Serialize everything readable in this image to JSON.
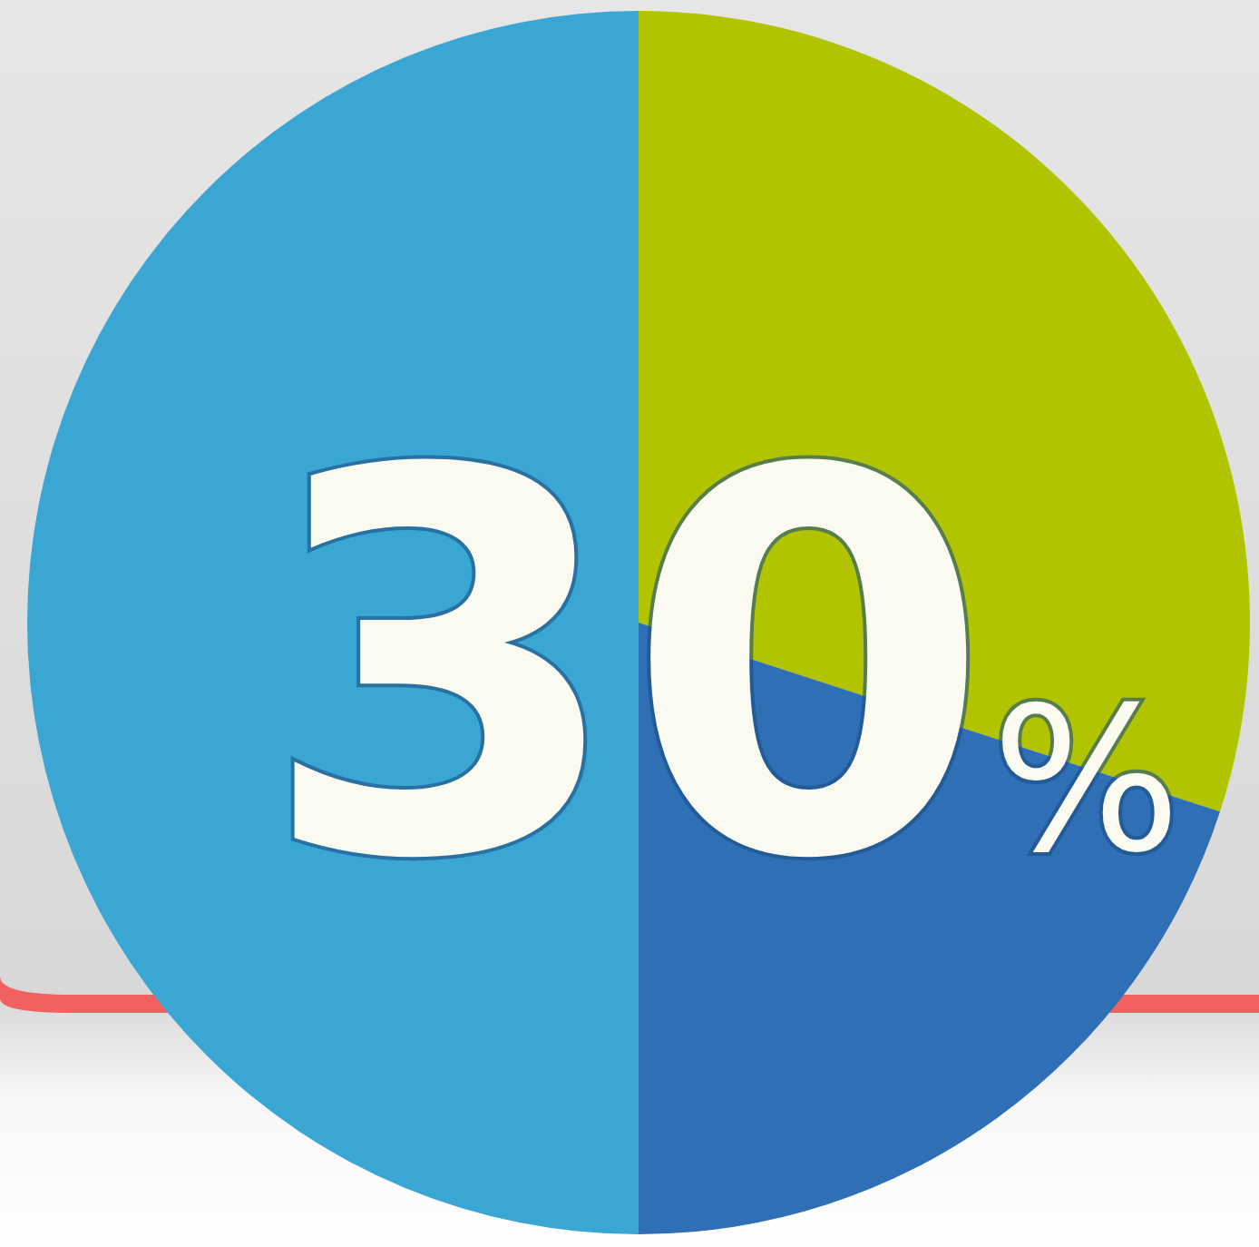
{
  "chart_data": {
    "type": "pie",
    "categories": [
      null,
      null,
      null
    ],
    "values": [
      30,
      20,
      50
    ],
    "colors": [
      "#b2c300",
      "#2f6fb6",
      "#3aa6d4"
    ],
    "value_labels": [
      "30%",
      null,
      null
    ]
  }
}
